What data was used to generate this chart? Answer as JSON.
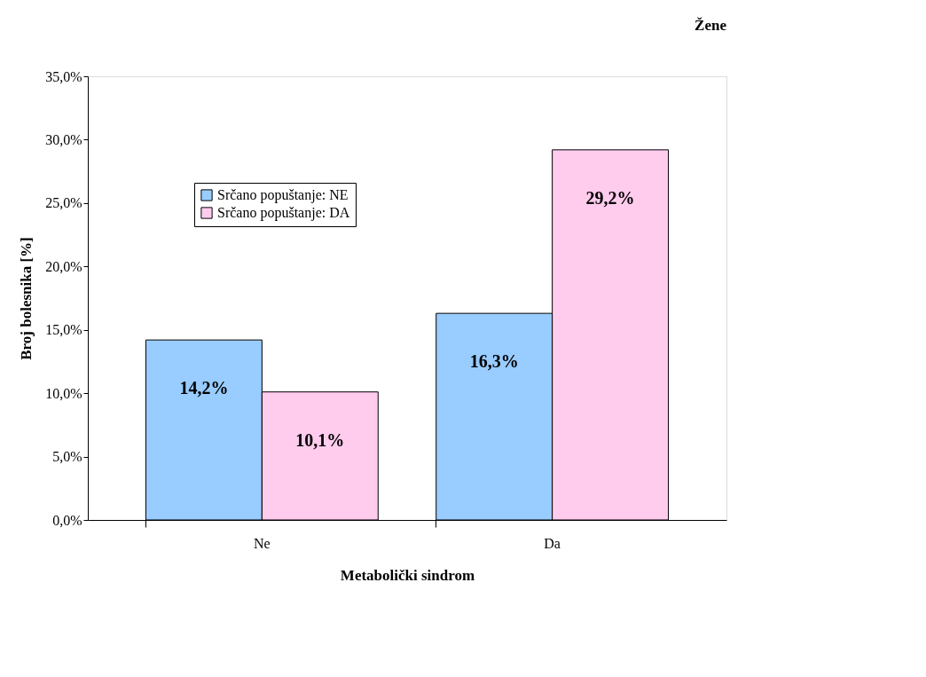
{
  "chart_data": {
    "type": "bar",
    "title": "Žene",
    "xlabel": "Metabolički sindrom",
    "ylabel": "Broj bolesnika [%]",
    "categories": [
      "Ne",
      "Da"
    ],
    "series": [
      {
        "name": "Srčano popuštanje: NE",
        "color": "#99ccff",
        "values": [
          14.2,
          16.3
        ],
        "value_labels": [
          "14,2%",
          "16,3%"
        ]
      },
      {
        "name": "Srčano popuštanje: DA",
        "color": "#ffccee",
        "values": [
          10.1,
          29.2
        ],
        "value_labels": [
          "10,1%",
          "29,2%"
        ]
      }
    ],
    "ylim": [
      0,
      35
    ],
    "yticks": [
      {
        "value": 0,
        "label": "0,0%"
      },
      {
        "value": 5,
        "label": "5,0%"
      },
      {
        "value": 10,
        "label": "10,0%"
      },
      {
        "value": 15,
        "label": "15,0%"
      },
      {
        "value": 20,
        "label": "20,0%"
      },
      {
        "value": 25,
        "label": "25,0%"
      },
      {
        "value": 30,
        "label": "30,0%"
      },
      {
        "value": 35,
        "label": "35,0%"
      }
    ],
    "grid": false,
    "legend": "top left"
  }
}
